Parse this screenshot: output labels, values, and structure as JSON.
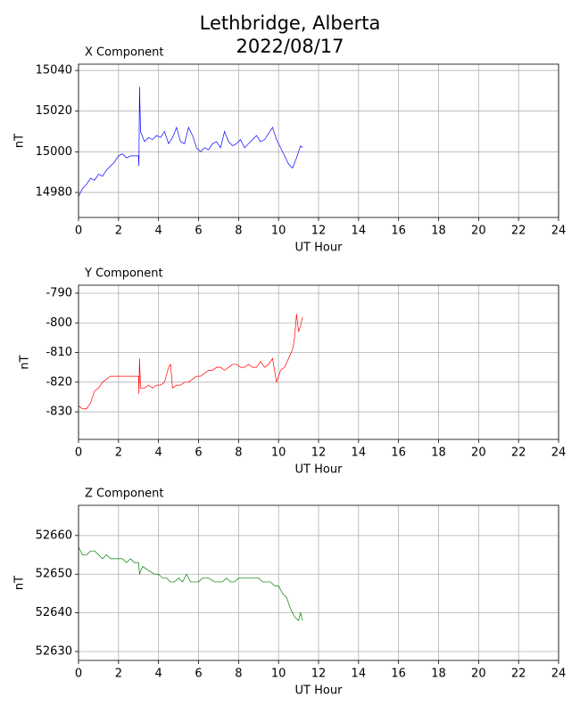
{
  "title": "Lethbridge, Alberta",
  "subtitle": "2022/08/17",
  "chart_data": [
    {
      "type": "line",
      "title": "X Component",
      "xlabel": "UT Hour",
      "ylabel": "nT",
      "color": "#0000ff",
      "grid": true,
      "xlim": [
        0,
        24
      ],
      "xticks": [
        0,
        2,
        4,
        6,
        8,
        10,
        12,
        14,
        16,
        18,
        20,
        22,
        24
      ],
      "ylim": [
        14967.7,
        15043.1
      ],
      "yticks": [
        14980,
        15000,
        15020,
        15040
      ],
      "x": [
        0,
        0.2,
        0.4,
        0.6,
        0.8,
        1.0,
        1.2,
        1.4,
        1.6,
        1.8,
        2.0,
        2.2,
        2.4,
        2.6,
        2.8,
        3.0,
        3.02,
        3.05,
        3.1,
        3.3,
        3.5,
        3.7,
        3.9,
        4.1,
        4.3,
        4.5,
        4.7,
        4.9,
        5.1,
        5.3,
        5.5,
        5.7,
        5.9,
        6.1,
        6.3,
        6.5,
        6.7,
        6.9,
        7.1,
        7.3,
        7.5,
        7.7,
        7.9,
        8.1,
        8.3,
        8.5,
        8.7,
        8.9,
        9.1,
        9.3,
        9.5,
        9.7,
        9.9,
        10.1,
        10.3,
        10.5,
        10.7,
        10.9,
        11.0,
        11.1,
        11.2
      ],
      "values": [
        14978,
        14982,
        14984,
        14987,
        14986,
        14989,
        14988,
        14991,
        14993,
        14995,
        14998,
        14999,
        14997,
        14998,
        14998,
        14998,
        14993,
        15032,
        15010,
        15005,
        15007,
        15006,
        15008,
        15007,
        15010,
        15004,
        15007,
        15012,
        15005,
        15004,
        15012,
        15008,
        15002,
        15000,
        15002,
        15001,
        15004,
        15005,
        15002,
        15010,
        15005,
        15003,
        15004,
        15006,
        15002,
        15004,
        15006,
        15008,
        15005,
        15006,
        15009,
        15012,
        15006,
        15002,
        14998,
        14994,
        14992,
        14997,
        15000,
        15003,
        15002
      ]
    },
    {
      "type": "line",
      "title": "Y Component",
      "xlabel": "UT Hour",
      "ylabel": "nT",
      "color": "#ff0000",
      "grid": true,
      "xlim": [
        0,
        24
      ],
      "xticks": [
        0,
        2,
        4,
        6,
        8,
        10,
        12,
        14,
        16,
        18,
        20,
        22,
        24
      ],
      "ylim": [
        -839.3,
        -787.3
      ],
      "yticks": [
        -830,
        -820,
        -810,
        -800,
        -790
      ],
      "x": [
        0,
        0.2,
        0.4,
        0.6,
        0.8,
        1.0,
        1.2,
        1.4,
        1.6,
        1.8,
        2.0,
        2.2,
        2.4,
        2.6,
        2.8,
        3.0,
        3.02,
        3.05,
        3.1,
        3.3,
        3.5,
        3.7,
        3.9,
        4.1,
        4.3,
        4.5,
        4.6,
        4.7,
        4.9,
        5.1,
        5.3,
        5.5,
        5.7,
        5.9,
        6.1,
        6.3,
        6.5,
        6.7,
        6.9,
        7.1,
        7.3,
        7.5,
        7.7,
        7.9,
        8.1,
        8.3,
        8.5,
        8.7,
        8.9,
        9.1,
        9.3,
        9.5,
        9.7,
        9.9,
        10.1,
        10.3,
        10.5,
        10.7,
        10.8,
        10.9,
        11.0,
        11.1,
        11.2
      ],
      "values": [
        -828,
        -829,
        -829,
        -827,
        -823,
        -822,
        -820,
        -819,
        -818,
        -818,
        -818,
        -818,
        -818,
        -818,
        -818,
        -818,
        -824,
        -812,
        -822,
        -822,
        -821,
        -822,
        -821,
        -821,
        -820,
        -815,
        -814,
        -822,
        -821,
        -821,
        -820,
        -820,
        -819,
        -818,
        -818,
        -817,
        -816,
        -816,
        -815,
        -815,
        -816,
        -815,
        -814,
        -814,
        -815,
        -815,
        -814,
        -815,
        -815,
        -813,
        -815,
        -814,
        -812,
        -820,
        -816,
        -815,
        -812,
        -809,
        -805,
        -797,
        -803,
        -801,
        -798
      ]
    },
    {
      "type": "line",
      "title": "Z Component",
      "xlabel": "UT Hour",
      "ylabel": "nT",
      "color": "#008000",
      "grid": true,
      "xlim": [
        0,
        24
      ],
      "xticks": [
        0,
        2,
        4,
        6,
        8,
        10,
        12,
        14,
        16,
        18,
        20,
        22,
        24
      ],
      "ylim": [
        52627.7,
        52667.8
      ],
      "yticks": [
        52630,
        52640,
        52650,
        52660
      ],
      "x": [
        0,
        0.2,
        0.4,
        0.6,
        0.8,
        1.0,
        1.2,
        1.4,
        1.6,
        1.8,
        2.0,
        2.2,
        2.4,
        2.6,
        2.8,
        3.0,
        3.05,
        3.2,
        3.5,
        3.8,
        4.0,
        4.2,
        4.4,
        4.6,
        4.8,
        5.0,
        5.2,
        5.4,
        5.6,
        5.8,
        6.0,
        6.2,
        6.5,
        6.8,
        7.0,
        7.2,
        7.4,
        7.6,
        7.8,
        8.0,
        8.2,
        8.4,
        8.6,
        8.8,
        9.0,
        9.2,
        9.4,
        9.6,
        9.8,
        10.0,
        10.2,
        10.4,
        10.6,
        10.8,
        11.0,
        11.1,
        11.2
      ],
      "values": [
        52657,
        52655,
        52655,
        52656,
        52656,
        52655,
        52654,
        52655,
        52654,
        52654,
        52654,
        52654,
        52653,
        52654,
        52653,
        52653,
        52650,
        52652,
        52651,
        52650,
        52650,
        52649,
        52649,
        52648,
        52648,
        52649,
        52648,
        52650,
        52648,
        52648,
        52648,
        52649,
        52649,
        52648,
        52648,
        52648,
        52649,
        52648,
        52648,
        52649,
        52649,
        52649,
        52649,
        52649,
        52649,
        52648,
        52648,
        52648,
        52647,
        52647,
        52645,
        52644,
        52641,
        52639,
        52638,
        52640,
        52638
      ]
    }
  ]
}
